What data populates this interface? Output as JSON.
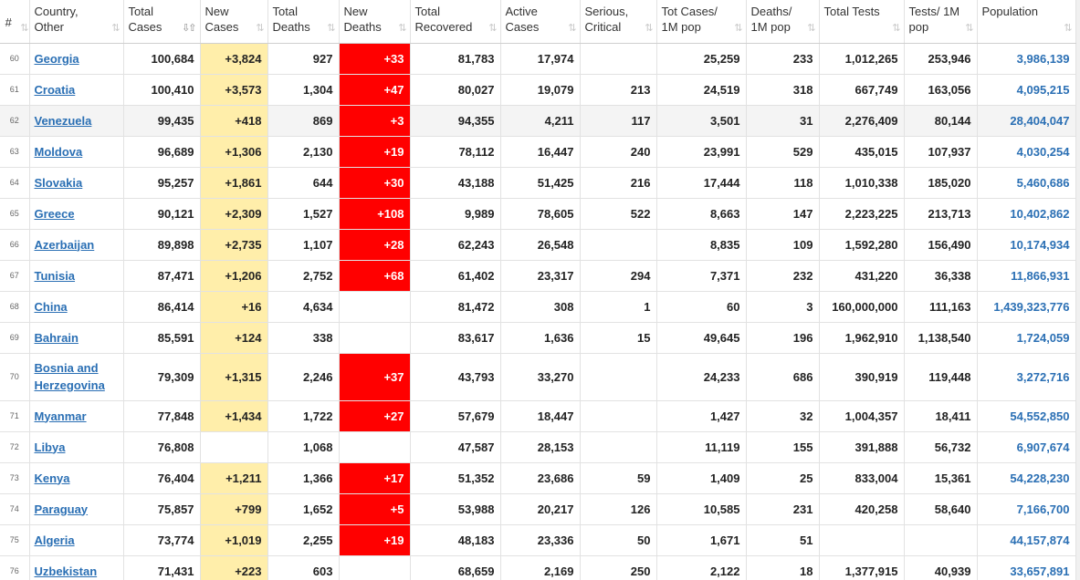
{
  "headers": [
    {
      "label": "#",
      "sort": "⇅"
    },
    {
      "label": "Country, Other",
      "sort": "⇅"
    },
    {
      "label": "Total Cases",
      "sort": "⇩⇧"
    },
    {
      "label": "New Cases",
      "sort": "⇅"
    },
    {
      "label": "Total Deaths",
      "sort": "⇅"
    },
    {
      "label": "New Deaths",
      "sort": "⇅"
    },
    {
      "label": "Total Recovered",
      "sort": "⇅"
    },
    {
      "label": "Active Cases",
      "sort": "⇅"
    },
    {
      "label": "Serious, Critical",
      "sort": "⇅"
    },
    {
      "label": "Tot Cases/ 1M pop",
      "sort": "⇅"
    },
    {
      "label": "Deaths/ 1M pop",
      "sort": "⇅"
    },
    {
      "label": "Total Tests",
      "sort": "⇅"
    },
    {
      "label": "Tests/ 1M pop",
      "sort": "⇅"
    },
    {
      "label": "Population",
      "sort": "⇅"
    }
  ],
  "rows": [
    {
      "idx": "60",
      "country": "Georgia",
      "total_cases": "100,684",
      "new_cases": "+3,824",
      "total_deaths": "927",
      "new_deaths": "+33",
      "recovered": "81,783",
      "active": "17,974",
      "serious": "",
      "cases_1m": "25,259",
      "deaths_1m": "233",
      "tests": "1,012,265",
      "tests_1m": "253,946",
      "population": "3,986,139"
    },
    {
      "idx": "61",
      "country": "Croatia",
      "total_cases": "100,410",
      "new_cases": "+3,573",
      "total_deaths": "1,304",
      "new_deaths": "+47",
      "recovered": "80,027",
      "active": "19,079",
      "serious": "213",
      "cases_1m": "24,519",
      "deaths_1m": "318",
      "tests": "667,749",
      "tests_1m": "163,056",
      "population": "4,095,215"
    },
    {
      "idx": "62",
      "country": "Venezuela",
      "total_cases": "99,435",
      "new_cases": "+418",
      "total_deaths": "869",
      "new_deaths": "+3",
      "recovered": "94,355",
      "active": "4,211",
      "serious": "117",
      "cases_1m": "3,501",
      "deaths_1m": "31",
      "tests": "2,276,409",
      "tests_1m": "80,144",
      "population": "28,404,047"
    },
    {
      "idx": "63",
      "country": "Moldova",
      "total_cases": "96,689",
      "new_cases": "+1,306",
      "total_deaths": "2,130",
      "new_deaths": "+19",
      "recovered": "78,112",
      "active": "16,447",
      "serious": "240",
      "cases_1m": "23,991",
      "deaths_1m": "529",
      "tests": "435,015",
      "tests_1m": "107,937",
      "population": "4,030,254"
    },
    {
      "idx": "64",
      "country": "Slovakia",
      "total_cases": "95,257",
      "new_cases": "+1,861",
      "total_deaths": "644",
      "new_deaths": "+30",
      "recovered": "43,188",
      "active": "51,425",
      "serious": "216",
      "cases_1m": "17,444",
      "deaths_1m": "118",
      "tests": "1,010,338",
      "tests_1m": "185,020",
      "population": "5,460,686"
    },
    {
      "idx": "65",
      "country": "Greece",
      "total_cases": "90,121",
      "new_cases": "+2,309",
      "total_deaths": "1,527",
      "new_deaths": "+108",
      "recovered": "9,989",
      "active": "78,605",
      "serious": "522",
      "cases_1m": "8,663",
      "deaths_1m": "147",
      "tests": "2,223,225",
      "tests_1m": "213,713",
      "population": "10,402,862"
    },
    {
      "idx": "66",
      "country": "Azerbaijan",
      "total_cases": "89,898",
      "new_cases": "+2,735",
      "total_deaths": "1,107",
      "new_deaths": "+28",
      "recovered": "62,243",
      "active": "26,548",
      "serious": "",
      "cases_1m": "8,835",
      "deaths_1m": "109",
      "tests": "1,592,280",
      "tests_1m": "156,490",
      "population": "10,174,934"
    },
    {
      "idx": "67",
      "country": "Tunisia",
      "total_cases": "87,471",
      "new_cases": "+1,206",
      "total_deaths": "2,752",
      "new_deaths": "+68",
      "recovered": "61,402",
      "active": "23,317",
      "serious": "294",
      "cases_1m": "7,371",
      "deaths_1m": "232",
      "tests": "431,220",
      "tests_1m": "36,338",
      "population": "11,866,931"
    },
    {
      "idx": "68",
      "country": "China",
      "total_cases": "86,414",
      "new_cases": "+16",
      "total_deaths": "4,634",
      "new_deaths": "",
      "recovered": "81,472",
      "active": "308",
      "serious": "1",
      "cases_1m": "60",
      "deaths_1m": "3",
      "tests": "160,000,000",
      "tests_1m": "111,163",
      "population": "1,439,323,776"
    },
    {
      "idx": "69",
      "country": "Bahrain",
      "total_cases": "85,591",
      "new_cases": "+124",
      "total_deaths": "338",
      "new_deaths": "",
      "recovered": "83,617",
      "active": "1,636",
      "serious": "15",
      "cases_1m": "49,645",
      "deaths_1m": "196",
      "tests": "1,962,910",
      "tests_1m": "1,138,540",
      "population": "1,724,059"
    },
    {
      "idx": "70",
      "country": "Bosnia and Herzegovina",
      "total_cases": "79,309",
      "new_cases": "+1,315",
      "total_deaths": "2,246",
      "new_deaths": "+37",
      "recovered": "43,793",
      "active": "33,270",
      "serious": "",
      "cases_1m": "24,233",
      "deaths_1m": "686",
      "tests": "390,919",
      "tests_1m": "119,448",
      "population": "3,272,716"
    },
    {
      "idx": "71",
      "country": "Myanmar",
      "total_cases": "77,848",
      "new_cases": "+1,434",
      "total_deaths": "1,722",
      "new_deaths": "+27",
      "recovered": "57,679",
      "active": "18,447",
      "serious": "",
      "cases_1m": "1,427",
      "deaths_1m": "32",
      "tests": "1,004,357",
      "tests_1m": "18,411",
      "population": "54,552,850"
    },
    {
      "idx": "72",
      "country": "Libya",
      "total_cases": "76,808",
      "new_cases": "",
      "total_deaths": "1,068",
      "new_deaths": "",
      "recovered": "47,587",
      "active": "28,153",
      "serious": "",
      "cases_1m": "11,119",
      "deaths_1m": "155",
      "tests": "391,888",
      "tests_1m": "56,732",
      "population": "6,907,674"
    },
    {
      "idx": "73",
      "country": "Kenya",
      "total_cases": "76,404",
      "new_cases": "+1,211",
      "total_deaths": "1,366",
      "new_deaths": "+17",
      "recovered": "51,352",
      "active": "23,686",
      "serious": "59",
      "cases_1m": "1,409",
      "deaths_1m": "25",
      "tests": "833,004",
      "tests_1m": "15,361",
      "population": "54,228,230"
    },
    {
      "idx": "74",
      "country": "Paraguay",
      "total_cases": "75,857",
      "new_cases": "+799",
      "total_deaths": "1,652",
      "new_deaths": "+5",
      "recovered": "53,988",
      "active": "20,217",
      "serious": "126",
      "cases_1m": "10,585",
      "deaths_1m": "231",
      "tests": "420,258",
      "tests_1m": "58,640",
      "population": "7,166,700"
    },
    {
      "idx": "75",
      "country": "Algeria",
      "total_cases": "73,774",
      "new_cases": "+1,019",
      "total_deaths": "2,255",
      "new_deaths": "+19",
      "recovered": "48,183",
      "active": "23,336",
      "serious": "50",
      "cases_1m": "1,671",
      "deaths_1m": "51",
      "tests": "",
      "tests_1m": "",
      "population": "44,157,874"
    },
    {
      "idx": "76",
      "country": "Uzbekistan",
      "total_cases": "71,431",
      "new_cases": "+223",
      "total_deaths": "603",
      "new_deaths": "",
      "recovered": "68,659",
      "active": "2,169",
      "serious": "250",
      "cases_1m": "2,122",
      "deaths_1m": "18",
      "tests": "1,377,915",
      "tests_1m": "40,939",
      "population": "33,657,891"
    }
  ],
  "colors": {
    "new_cases_bg": "#ffeeaa",
    "new_deaths_bg": "#ff0000",
    "link": "#2a6fb4"
  }
}
